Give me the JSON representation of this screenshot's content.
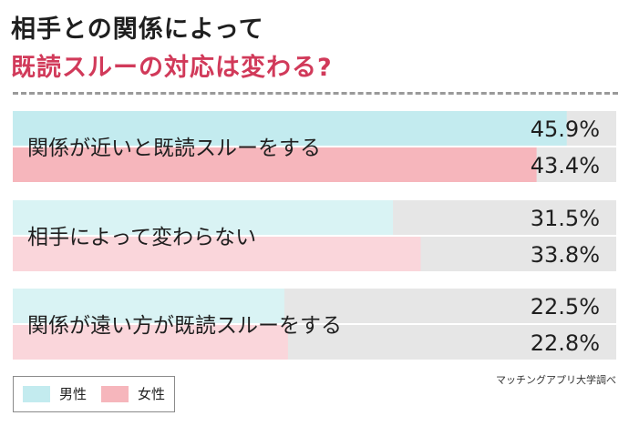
{
  "header": {
    "title_line1": "相手との関係によって",
    "title_line2": "既読スルーの対応は変わる?"
  },
  "source_note": "マッチングアプリ大学調べ",
  "colors": {
    "male": "#c3ebef",
    "female": "#f6b6bc",
    "male_light": "#d9f3f4",
    "female_light": "#fad6db",
    "track": "#e6e6e6",
    "accent_title": "#d13a5a"
  },
  "legend": [
    {
      "label": "男性",
      "color": "#c3ebef"
    },
    {
      "label": "女性",
      "color": "#f6b6bc"
    }
  ],
  "chart_data": {
    "type": "bar",
    "orientation": "horizontal",
    "title": "相手との関係によって 既読スルーの対応は変わる?",
    "categories": [
      "関係が近いと既読スルーをする",
      "相手によって変わらない",
      "関係が遠い方が既読スルーをする"
    ],
    "series": [
      {
        "name": "男性",
        "values": [
          45.9,
          31.5,
          22.5
        ]
      },
      {
        "name": "女性",
        "values": [
          43.4,
          33.8,
          22.8
        ]
      }
    ],
    "value_labels": [
      [
        "45.9%",
        "43.4%"
      ],
      [
        "31.5%",
        "33.8%"
      ],
      [
        "22.5%",
        "22.8%"
      ]
    ],
    "unit": "%",
    "xlim": [
      0,
      50
    ],
    "grid": false,
    "legend_position": "bottom-left"
  }
}
